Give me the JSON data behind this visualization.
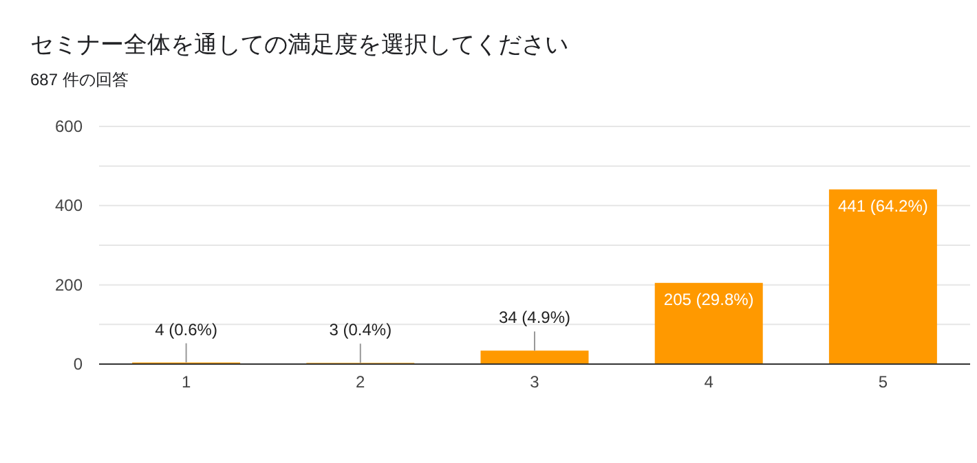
{
  "chart_data": {
    "type": "bar",
    "title": "セミナー全体を通しての満足度を選択してください",
    "subtitle": "687 件の回答",
    "categories": [
      "1",
      "2",
      "3",
      "4",
      "5"
    ],
    "values": [
      4,
      3,
      34,
      205,
      441
    ],
    "value_labels": [
      "4 (0.6%)",
      "3 (0.4%)",
      "34 (4.9%)",
      "205 (29.8%)",
      "441 (64.2%)"
    ],
    "color": "#ff9900",
    "ylim": [
      0,
      600
    ],
    "yticks": [
      0,
      {
        "value": 100,
        "label": null
      },
      200,
      {
        "value": 300,
        "label": null
      },
      400,
      {
        "value": 500,
        "label": null
      },
      600
    ],
    "grid": "y"
  }
}
